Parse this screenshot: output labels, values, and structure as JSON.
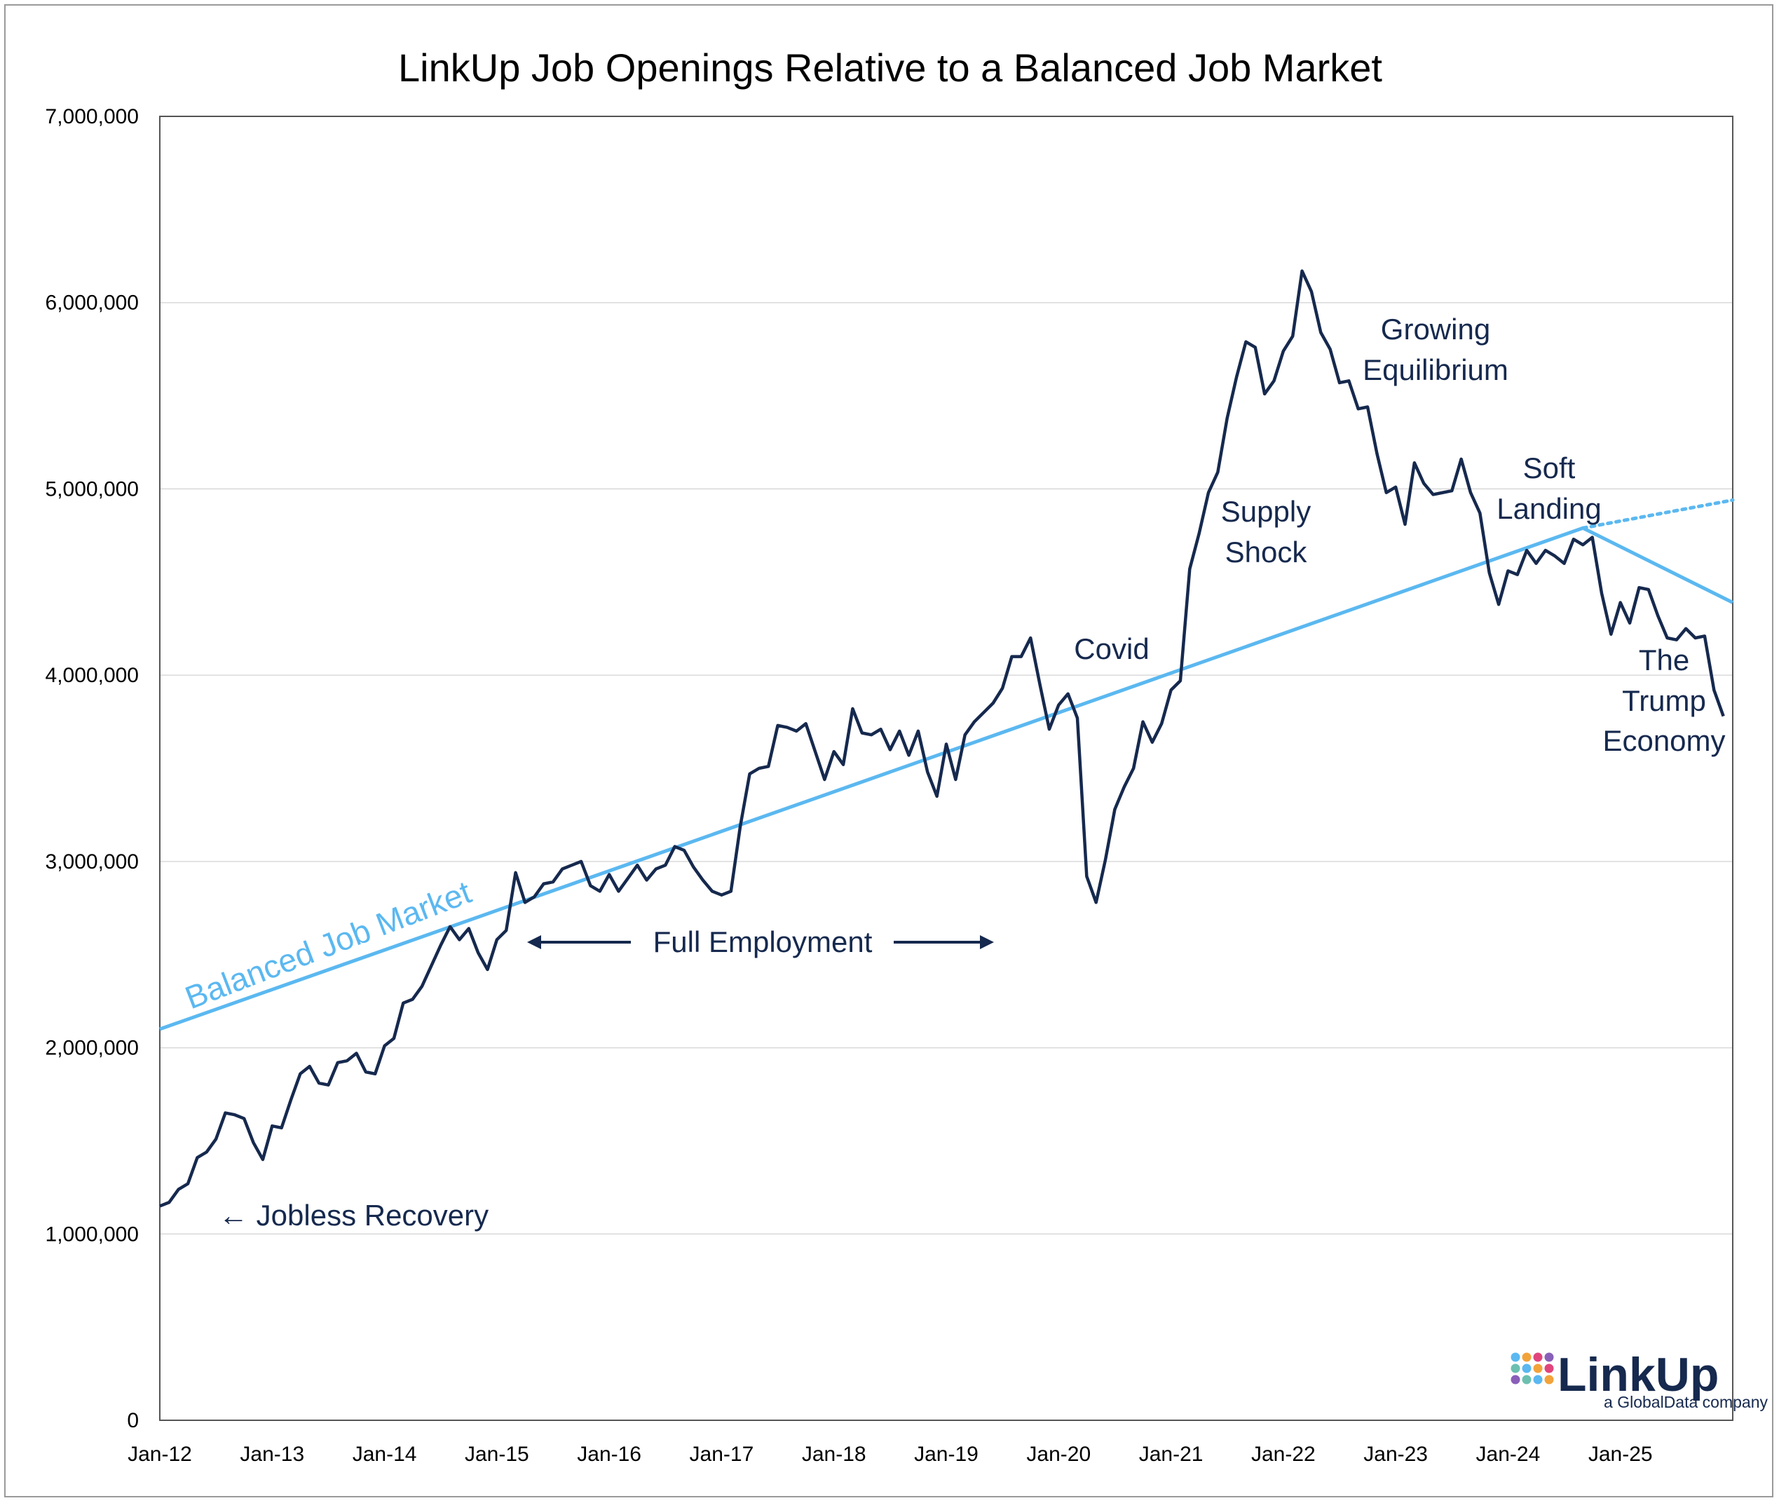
{
  "colors": {
    "openings": "#16294e",
    "balanced": "#5bb8f0",
    "grid": "#d9d9d9",
    "axis": "#555555"
  },
  "chart_data": {
    "type": "line",
    "title": "LinkUp Job Openings Relative to a Balanced Job Market",
    "xlabel": "",
    "ylabel": "",
    "ylim": [
      0,
      7000000
    ],
    "y_ticks": [
      0,
      1000000,
      2000000,
      3000000,
      4000000,
      5000000,
      6000000,
      7000000
    ],
    "y_tick_labels": [
      "0",
      "1,000,000",
      "2,000,000",
      "3,000,000",
      "4,000,000",
      "5,000,000",
      "6,000,000",
      "7,000,000"
    ],
    "x_tick_labels": [
      "Jan-12",
      "Jan-13",
      "Jan-14",
      "Jan-15",
      "Jan-16",
      "Jan-17",
      "Jan-18",
      "Jan-19",
      "Jan-20",
      "Jan-21",
      "Jan-22",
      "Jan-23",
      "Jan-24",
      "Jan-25"
    ],
    "grid": "horizontal",
    "legend": "none",
    "series": [
      {
        "values": [
          1150000,
          1170000,
          1240000,
          1270000,
          1410000,
          1440000,
          1510000,
          1650000,
          1640000,
          1620000,
          1490000,
          1400000,
          1580000,
          1570000,
          1720000,
          1860000,
          1900000,
          1810000,
          1800000,
          1920000,
          1930000,
          1970000,
          1870000,
          1860000,
          2010000,
          2050000,
          2240000,
          2260000,
          2330000,
          2440000,
          2550000,
          2650000,
          2580000,
          2640000,
          2510000,
          2420000,
          2580000,
          2630000,
          2940000,
          2780000,
          2810000,
          2880000,
          2890000,
          2960000,
          2980000,
          3000000,
          2870000,
          2840000,
          2930000,
          2840000,
          2910000,
          2980000,
          2900000,
          2960000,
          2980000,
          3080000,
          3060000,
          2970000,
          2900000,
          2840000,
          2820000,
          2840000,
          3190000,
          3470000,
          3500000,
          3510000,
          3730000,
          3720000,
          3700000,
          3740000,
          3590000,
          3440000,
          3590000,
          3520000,
          3820000,
          3690000,
          3680000,
          3710000,
          3600000,
          3700000,
          3570000,
          3700000,
          3480000,
          3350000,
          3630000,
          3440000,
          3680000,
          3750000,
          3800000,
          3850000,
          3930000,
          4100000,
          4100000,
          4200000,
          3950000,
          3710000,
          3840000,
          3900000,
          3770000,
          2920000,
          2780000,
          3010000,
          3280000,
          3400000,
          3500000,
          3750000,
          3640000,
          3740000,
          3920000,
          3970000,
          4570000,
          4760000,
          4980000,
          5090000,
          5380000,
          5600000,
          5790000,
          5760000,
          5510000,
          5580000,
          5740000,
          5820000,
          6170000,
          6060000,
          5840000,
          5750000,
          5570000,
          5580000,
          5430000,
          5440000,
          5190000,
          4980000,
          5010000,
          4810000,
          5140000,
          5030000,
          4970000,
          4980000,
          4990000,
          5160000,
          4980000,
          4870000,
          4550000,
          4380000,
          4560000,
          4540000,
          4670000,
          4600000,
          4670000,
          4640000,
          4600000,
          4730000,
          4700000,
          4740000,
          4440000,
          4220000,
          4390000,
          4280000,
          4470000,
          4460000,
          4320000,
          4200000,
          4190000,
          4250000,
          4200000,
          4210000,
          3920000,
          3780000
        ]
      },
      {
        "x": [
          "Jan-12",
          "Sep-24",
          "Jan-26"
        ],
        "values": [
          2100000,
          4790000,
          4390000
        ]
      },
      {
        "x": [
          "Sep-24",
          "Jan-26"
        ],
        "values": [
          4790000,
          4940000
        ],
        "style": "dotted"
      }
    ],
    "annotations": [
      "← Jobless Recovery",
      "Balanced Job Market",
      "Full Employment",
      "Covid",
      "Supply",
      "Shock",
      "Growing",
      "Equilibrium",
      "Soft",
      "Landing",
      "The",
      "Trump",
      "Economy"
    ]
  },
  "logo": {
    "name": "LinkUp",
    "tagline": "a GlobalData company"
  }
}
